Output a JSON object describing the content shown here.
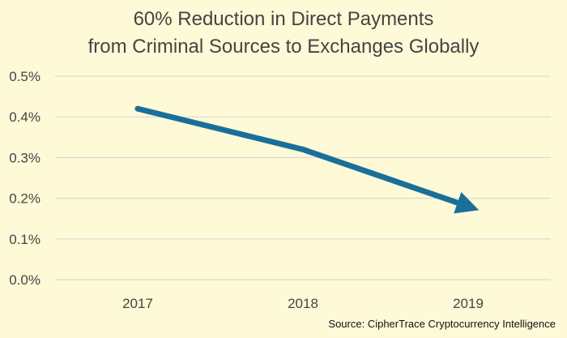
{
  "chart_data": {
    "type": "line",
    "title": [
      "60% Reduction in Direct Payments",
      "from Criminal Sources to Exchanges Globally"
    ],
    "categories": [
      "2017",
      "2018",
      "2019"
    ],
    "series": [
      {
        "values": [
          0.42,
          0.32,
          0.18
        ]
      }
    ],
    "ylim": [
      0,
      0.5
    ],
    "yticks": [
      "0.0%",
      "0.1%",
      "0.2%",
      "0.3%",
      "0.4%",
      "0.5%"
    ],
    "grid": true,
    "line_end": "arrow",
    "source": "Source: CipherTrace Cryptocurrency Intelligence"
  },
  "colors": {
    "background": "#fef9d7",
    "line": "#1a6f9a",
    "grid": "#d4d4d4",
    "text": "#444444"
  }
}
